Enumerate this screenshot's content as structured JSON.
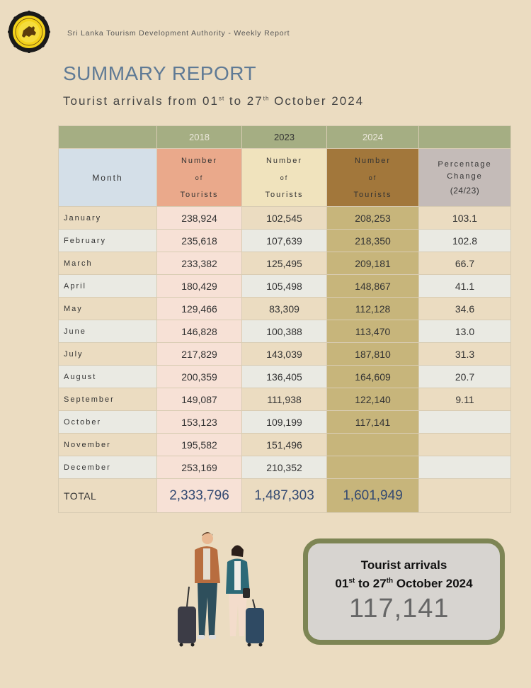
{
  "header": {
    "organization": "Sri Lanka Tourism Development Authority - Weekly Report"
  },
  "page_title": "SUMMARY REPORT",
  "subtitle": {
    "prefix": "Tourist arrivals from 01",
    "sup1": "st",
    "mid": " to 27",
    "sup2": "th",
    "suffix": " October 2024"
  },
  "table": {
    "years": [
      "2018",
      "2023",
      "2024"
    ],
    "month_header": "Month",
    "tourist_header": [
      "Number",
      "of",
      "Tourists"
    ],
    "pct_header": [
      "Percentage",
      "Change",
      "(24/23)"
    ],
    "rows": [
      {
        "month": "January",
        "y2018": "238,924",
        "y2023": "102,545",
        "y2024": "208,253",
        "pct": "103.1"
      },
      {
        "month": "February",
        "y2018": "235,618",
        "y2023": "107,639",
        "y2024": "218,350",
        "pct": "102.8"
      },
      {
        "month": "March",
        "y2018": "233,382",
        "y2023": "125,495",
        "y2024": "209,181",
        "pct": "66.7"
      },
      {
        "month": "April",
        "y2018": "180,429",
        "y2023": "105,498",
        "y2024": "148,867",
        "pct": "41.1"
      },
      {
        "month": "May",
        "y2018": "129,466",
        "y2023": "83,309",
        "y2024": "112,128",
        "pct": "34.6"
      },
      {
        "month": "June",
        "y2018": "146,828",
        "y2023": "100,388",
        "y2024": "113,470",
        "pct": "13.0"
      },
      {
        "month": "July",
        "y2018": "217,829",
        "y2023": "143,039",
        "y2024": "187,810",
        "pct": "31.3"
      },
      {
        "month": "August",
        "y2018": "200,359",
        "y2023": "136,405",
        "y2024": "164,609",
        "pct": "20.7"
      },
      {
        "month": "September",
        "y2018": "149,087",
        "y2023": "111,938",
        "y2024": "122,140",
        "pct": "9.11"
      },
      {
        "month": "October",
        "y2018": "153,123",
        "y2023": "109,199",
        "y2024": "117,141",
        "pct": ""
      },
      {
        "month": "November",
        "y2018": "195,582",
        "y2023": "151,496",
        "y2024": "",
        "pct": ""
      },
      {
        "month": "December",
        "y2018": "253,169",
        "y2023": "210,352",
        "y2024": "",
        "pct": ""
      }
    ],
    "total": {
      "label": "TOTAL",
      "y2018": "2,333,796",
      "y2023": "1,487,303",
      "y2024": "1,601,949",
      "pct": ""
    }
  },
  "callout": {
    "line1": "Tourist arrivals",
    "line2_prefix": "01",
    "line2_sup1": "st",
    "line2_mid": " to 27",
    "line2_sup2": "th",
    "line2_suffix": " October 2024",
    "value": "117,141"
  },
  "colors": {
    "background": "#ebdcc1",
    "title": "#5f7a95",
    "header_band": "#a5ae83",
    "col_2018": "#eaa98b",
    "col_2023": "#f0e3bd",
    "col_2024": "#a2773b",
    "col_2024_cells": "#c7b57b",
    "callout_border": "#7d8554"
  },
  "icons": [
    "lion-emblem-logo",
    "travelers-illustration"
  ]
}
